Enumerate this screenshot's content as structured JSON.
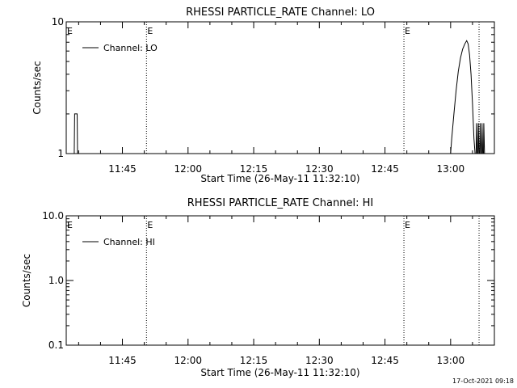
{
  "chart_data": [
    {
      "type": "line",
      "title": "RHESSI PARTICLE_RATE Channel: LO",
      "xlabel": "Start Time (26-May-11 11:32:10)",
      "ylabel": "Counts/sec",
      "yscale": "log",
      "ylim": [
        1,
        10
      ],
      "xlim": [
        "11:32:10",
        "13:10:00"
      ],
      "xticks": [
        "11:45",
        "12:00",
        "12:15",
        "12:30",
        "12:45",
        "13:00"
      ],
      "yticks": [
        "1",
        "10"
      ],
      "grid": false,
      "legend": "top-left",
      "series": [
        {
          "name": "Channel: LO",
          "color": "#000000",
          "points": [
            [
              "11:34:00",
              1
            ],
            [
              "11:34:05",
              2
            ],
            [
              "11:34:40",
              2
            ],
            [
              "11:34:45",
              1
            ],
            [
              "13:00:00",
              1
            ],
            [
              "13:00:15",
              1.3
            ],
            [
              "13:00:45",
              2.0
            ],
            [
              "13:01:15",
              3.0
            ],
            [
              "13:01:45",
              4.2
            ],
            [
              "13:02:15",
              5.3
            ],
            [
              "13:02:45",
              6.2
            ],
            [
              "13:03:15",
              6.8
            ],
            [
              "13:03:40",
              7.2
            ],
            [
              "13:04:00",
              6.8
            ],
            [
              "13:04:20",
              5.6
            ],
            [
              "13:04:40",
              4.0
            ],
            [
              "13:05:00",
              2.4
            ],
            [
              "13:05:20",
              1.3
            ],
            [
              "13:05:35",
              1
            ],
            [
              "13:05:50",
              1
            ],
            [
              "13:05:55",
              1.7
            ],
            [
              "13:06:05",
              1
            ],
            [
              "13:06:15",
              1
            ],
            [
              "13:06:20",
              1.7
            ],
            [
              "13:06:30",
              1
            ],
            [
              "13:06:40",
              1
            ],
            [
              "13:06:45",
              1.7
            ],
            [
              "13:06:55",
              1
            ],
            [
              "13:07:05",
              1
            ],
            [
              "13:07:10",
              1.7
            ],
            [
              "13:07:20",
              1
            ],
            [
              "13:07:30",
              1
            ],
            [
              "13:07:35",
              1.7
            ],
            [
              "13:07:45",
              1
            ]
          ]
        }
      ],
      "markers": [
        {
          "time": "11:50:30",
          "label": "E"
        },
        {
          "time": "12:49:20",
          "label": "E"
        },
        {
          "time": "13:06:30",
          "label": ""
        }
      ]
    },
    {
      "type": "line",
      "title": "RHESSI PARTICLE_RATE Channel: HI",
      "xlabel": "Start Time (26-May-11 11:32:10)",
      "ylabel": "Counts/sec",
      "yscale": "log",
      "ylim": [
        0.1,
        10
      ],
      "xlim": [
        "11:32:10",
        "13:10:00"
      ],
      "xticks": [
        "11:45",
        "12:00",
        "12:15",
        "12:30",
        "12:45",
        "13:00"
      ],
      "yticks": [
        "0.1",
        "1.0",
        "10.0"
      ],
      "grid": false,
      "legend": "top-left",
      "series": [
        {
          "name": "Channel: HI",
          "color": "#000000",
          "points": []
        }
      ],
      "markers": [
        {
          "time": "11:50:30",
          "label": "E"
        },
        {
          "time": "12:49:20",
          "label": "E"
        },
        {
          "time": "13:06:30",
          "label": ""
        }
      ]
    }
  ],
  "footer": {
    "timestamp": "17-Oct-2021 09:18"
  }
}
